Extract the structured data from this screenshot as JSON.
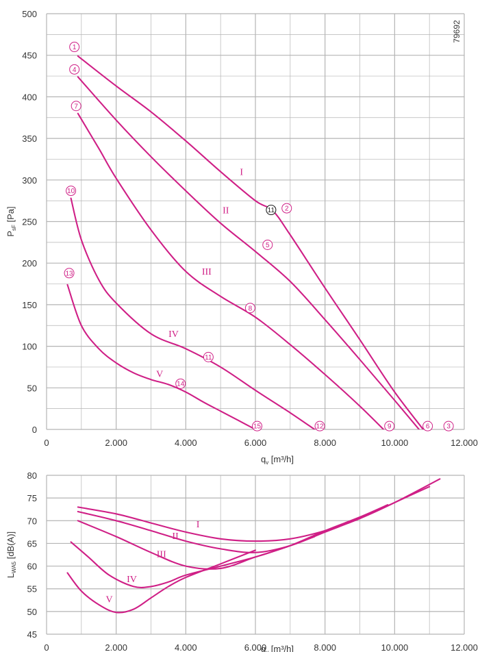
{
  "colors": {
    "curve": "#cf1f86",
    "grid": "#b4b4b4",
    "background": "#ffffff",
    "special_point": "#222222"
  },
  "figure_code": "79692",
  "chart_data": [
    {
      "type": "line",
      "title": "",
      "xlabel": "q",
      "xlabel_sub": "v",
      "xlabel_unit": " [m³/h]",
      "ylabel": "P",
      "ylabel_sub": "sF",
      "ylabel_unit": " [Pa]",
      "xlim": [
        0,
        12000
      ],
      "ylim": [
        0,
        500
      ],
      "x_ticks": [
        0,
        2000,
        4000,
        6000,
        8000,
        10000,
        12000
      ],
      "x_tick_labels": [
        "0",
        "2.000",
        "4.000",
        "6.000",
        "8.000",
        "10.000",
        "12.000"
      ],
      "y_ticks": [
        0,
        50,
        100,
        150,
        200,
        250,
        300,
        350,
        400,
        450,
        500
      ],
      "y_tick_labels": [
        "0",
        "50",
        "100",
        "150",
        "200",
        "250",
        "300",
        "350",
        "400",
        "450",
        "500"
      ],
      "grid": true,
      "series": [
        {
          "name": "I",
          "x": [
            900,
            2000,
            3000,
            4000,
            5000,
            6000,
            6500,
            7000,
            8000,
            9000,
            10000,
            11000,
            11300
          ],
          "y": [
            449,
            413,
            382,
            347,
            310,
            275,
            263,
            234,
            170,
            108,
            45,
            -10,
            -30
          ]
        },
        {
          "name": "II",
          "x": [
            900,
            2000,
            3000,
            4000,
            5000,
            6000,
            7000,
            8000,
            9000,
            10000,
            11000
          ],
          "y": [
            424,
            372,
            328,
            287,
            248,
            214,
            178,
            132,
            84,
            35,
            -15
          ]
        },
        {
          "name": "III",
          "x": [
            900,
            1500,
            2000,
            3000,
            4000,
            5000,
            6000,
            7000,
            8000,
            9000,
            9800
          ],
          "y": [
            380,
            338,
            302,
            240,
            190,
            160,
            135,
            102,
            66,
            28,
            -5
          ]
        },
        {
          "name": "IV",
          "x": [
            700,
            1000,
            1500,
            2000,
            3000,
            4000,
            5000,
            6000,
            7000,
            7700
          ],
          "y": [
            278,
            228,
            180,
            152,
            115,
            97,
            75,
            47,
            20,
            0
          ]
        },
        {
          "name": "V",
          "x": [
            600,
            1000,
            1500,
            2000,
            2500,
            3000,
            3500,
            4000,
            4500,
            5000,
            5500,
            6000
          ],
          "y": [
            174,
            125,
            97,
            80,
            68,
            60,
            54,
            45,
            33,
            22,
            11,
            0
          ]
        }
      ],
      "series_labels": [
        {
          "text": "I",
          "x": 5600,
          "y": 306
        },
        {
          "text": "II",
          "x": 5150,
          "y": 260
        },
        {
          "text": "III",
          "x": 4600,
          "y": 186
        },
        {
          "text": "IV",
          "x": 3650,
          "y": 111
        },
        {
          "text": "V",
          "x": 3250,
          "y": 63
        }
      ],
      "points": [
        {
          "id": "1",
          "x": 800,
          "y": 460
        },
        {
          "id": "2",
          "x": 6900,
          "y": 266
        },
        {
          "id": "3",
          "x": 11550,
          "y": 4
        },
        {
          "id": "4",
          "x": 800,
          "y": 433
        },
        {
          "id": "5",
          "x": 6350,
          "y": 222
        },
        {
          "id": "6",
          "x": 10950,
          "y": 4
        },
        {
          "id": "7",
          "x": 850,
          "y": 389
        },
        {
          "id": "8",
          "x": 5850,
          "y": 146
        },
        {
          "id": "9",
          "x": 9850,
          "y": 4
        },
        {
          "id": "10",
          "x": 700,
          "y": 287
        },
        {
          "id": "11",
          "x": 4650,
          "y": 87
        },
        {
          "id": "12",
          "x": 7850,
          "y": 4
        },
        {
          "id": "13",
          "x": 650,
          "y": 188
        },
        {
          "id": "14",
          "x": 3850,
          "y": 55
        },
        {
          "id": "15",
          "x": 6050,
          "y": 4
        }
      ],
      "special_point": {
        "id": "11",
        "x": 6450,
        "y": 264
      }
    },
    {
      "type": "line",
      "title": "",
      "xlabel": "q",
      "xlabel_sub": "v",
      "xlabel_unit": " [m³/h]",
      "ylabel": "L",
      "ylabel_sub": "WA5",
      "ylabel_unit": " [dB(A)]",
      "xlim": [
        0,
        12000
      ],
      "ylim": [
        45,
        80
      ],
      "x_ticks": [
        0,
        2000,
        4000,
        6000,
        8000,
        10000,
        12000
      ],
      "x_tick_labels": [
        "0",
        "2.000",
        "4.000",
        "6.000",
        "8.000",
        "10.000",
        "12.000"
      ],
      "y_ticks": [
        45,
        50,
        55,
        60,
        65,
        70,
        75,
        80
      ],
      "y_tick_labels": [
        "45",
        "50",
        "55",
        "60",
        "65",
        "70",
        "75",
        "80"
      ],
      "grid": true,
      "series": [
        {
          "name": "I",
          "x": [
            900,
            2000,
            3000,
            4000,
            5000,
            6000,
            7000,
            8000,
            9000,
            10000,
            11300
          ],
          "y": [
            73,
            71.5,
            69.5,
            67.5,
            66,
            65.5,
            66,
            67.8,
            70.5,
            74,
            79.2
          ]
        },
        {
          "name": "II",
          "x": [
            900,
            2000,
            3000,
            4000,
            5000,
            6000,
            7000,
            8000,
            9000,
            10000,
            11000
          ],
          "y": [
            72,
            70,
            67.8,
            65.5,
            63.8,
            63,
            64.5,
            67.5,
            70.5,
            74,
            77.5
          ]
        },
        {
          "name": "III",
          "x": [
            900,
            2000,
            3000,
            4000,
            5000,
            6000,
            7000,
            8000,
            9000,
            9800
          ],
          "y": [
            70,
            66.5,
            63,
            60,
            59.5,
            62,
            64.5,
            67.8,
            70.8,
            73.5
          ]
        },
        {
          "name": "IV",
          "x": [
            700,
            1200,
            1800,
            2500,
            3000,
            3500,
            4000,
            5000,
            6000,
            7000,
            7700
          ],
          "y": [
            65.3,
            62,
            58,
            55.5,
            55.5,
            56.5,
            58,
            60,
            62,
            64.5,
            66.5
          ]
        },
        {
          "name": "V",
          "x": [
            600,
            1000,
            1500,
            2000,
            2500,
            3000,
            3500,
            4000,
            5000,
            6000
          ],
          "y": [
            58.5,
            54.5,
            51.5,
            49.8,
            50.5,
            53,
            55.5,
            57.5,
            60.5,
            63.5
          ]
        }
      ],
      "series_labels": [
        {
          "text": "I",
          "x": 4350,
          "y": 68.5
        },
        {
          "text": "II",
          "x": 3700,
          "y": 66
        },
        {
          "text": "III",
          "x": 3300,
          "y": 62
        },
        {
          "text": "IV",
          "x": 2450,
          "y": 56.5
        },
        {
          "text": "V",
          "x": 1800,
          "y": 52
        }
      ]
    }
  ]
}
